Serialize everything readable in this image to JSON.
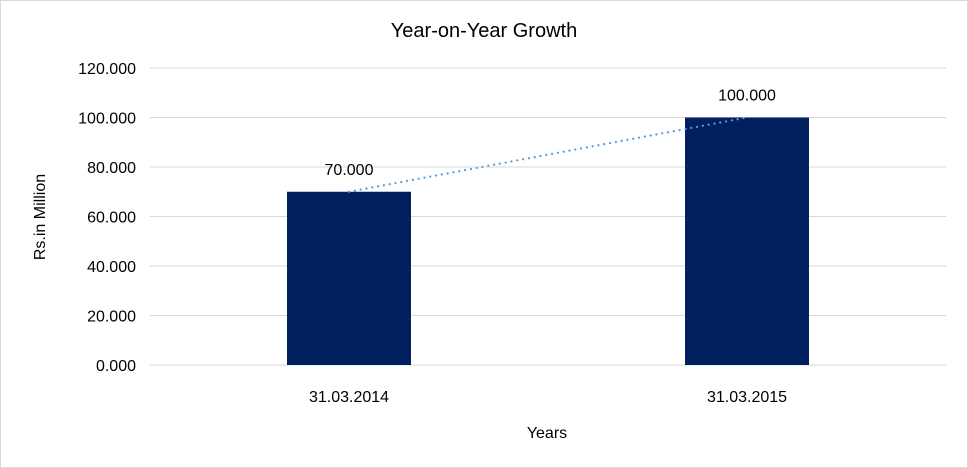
{
  "chart_data": {
    "type": "bar",
    "title": "Year-on-Year Growth",
    "xlabel": "Years",
    "ylabel": "Rs.in Million",
    "categories": [
      "31.03.2014",
      "31.03.2015"
    ],
    "values": [
      70,
      100
    ],
    "data_labels": [
      "70.000",
      "100.000"
    ],
    "ylim": [
      0,
      120
    ],
    "yticks": [
      "0.000",
      "20.000",
      "40.000",
      "60.000",
      "80.000",
      "100.000",
      "120.000"
    ],
    "grid": true,
    "trendline": "linear, dotted",
    "colors": {
      "bar": "#002060",
      "trendline": "#5b9bd5",
      "grid": "#d9d9d9"
    }
  }
}
